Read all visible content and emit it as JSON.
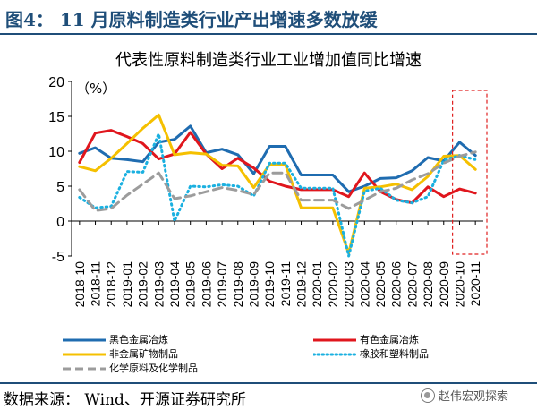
{
  "header": {
    "figure_label": "图4：  11 月原料制造类行业产出增速多数放缓"
  },
  "chart_data": {
    "type": "line",
    "title": "代表性原料制造类行业工业增加值同比增速",
    "unit_label": "（%）",
    "categories": [
      "2018-10",
      "2018-11",
      "2018-12",
      "2019-01",
      "2019-02",
      "2019-03",
      "2019-04",
      "2019-05",
      "2019-06",
      "2019-07",
      "2019-08",
      "2019-09",
      "2019-10",
      "2019-11",
      "2019-12",
      "2020-01",
      "2020-02",
      "2020-03",
      "2020-04",
      "2020-05",
      "2020-06",
      "2020-07",
      "2020-08",
      "2020-09",
      "2020-10",
      "2020-11"
    ],
    "ylim": [
      -5,
      20
    ],
    "yticks": [
      "20",
      "15",
      "10",
      "5",
      "0",
      "-5"
    ],
    "highlight_box": {
      "from_category": "2020-10",
      "to_category": "2020-11",
      "color": "#e02020"
    },
    "series": [
      {
        "name": "黑色金属冶炼",
        "color": "#1f6cb0",
        "dash": "solid",
        "values": [
          9.7,
          10.5,
          9.0,
          8.8,
          8.5,
          11.3,
          11.7,
          13.6,
          9.8,
          10.3,
          9.5,
          6.8,
          10.7,
          10.7,
          6.6,
          6.6,
          6.6,
          4.2,
          5.0,
          6.1,
          6.2,
          7.2,
          9.1,
          8.6,
          11.3,
          9.4
        ]
      },
      {
        "name": "有色金属冶炼",
        "color": "#e0161d",
        "dash": "solid",
        "values": [
          8.4,
          12.6,
          13.0,
          12.1,
          11.1,
          8.9,
          9.6,
          12.7,
          9.6,
          7.5,
          9.0,
          7.6,
          5.7,
          5.0,
          4.5,
          4.5,
          4.5,
          3.5,
          6.9,
          4.2,
          3.1,
          2.6,
          4.9,
          3.5,
          4.6,
          4.0
        ]
      },
      {
        "name": "非金属矿物制品",
        "color": "#f5c000",
        "dash": "solid",
        "values": [
          7.8,
          7.2,
          9.0,
          11.1,
          13.3,
          15.2,
          9.5,
          9.8,
          9.6,
          8.0,
          7.9,
          4.8,
          8.1,
          8.1,
          1.9,
          1.9,
          1.9,
          -4.6,
          4.7,
          4.9,
          5.3,
          4.5,
          6.4,
          9.3,
          9.4,
          7.4
        ]
      },
      {
        "name": "橡胶和塑料制品",
        "color": "#1ab0e0",
        "dash": "dot",
        "values": [
          3.4,
          1.9,
          2.1,
          7.1,
          7.0,
          12.5,
          0.0,
          5.0,
          4.9,
          5.2,
          5.0,
          3.6,
          8.3,
          8.3,
          4.7,
          4.7,
          4.7,
          -5.0,
          4.3,
          4.7,
          3.0,
          2.6,
          3.5,
          8.7,
          9.4,
          8.8
        ]
      },
      {
        "name": "化学原料及化学制品",
        "color": "#9c9c9c",
        "dash": "dash",
        "values": [
          4.5,
          1.5,
          1.8,
          3.7,
          5.3,
          6.9,
          3.2,
          3.6,
          4.2,
          4.8,
          4.4,
          3.8,
          6.9,
          6.9,
          3.0,
          3.0,
          3.0,
          1.8,
          3.0,
          4.2,
          4.7,
          5.9,
          6.8,
          8.3,
          9.3,
          9.9
        ]
      }
    ]
  },
  "footer": {
    "source": "数据来源：  Wind、开源证券研究所",
    "watermark": "赵伟宏观探索",
    "watermark_icon": "wechat-icon"
  }
}
